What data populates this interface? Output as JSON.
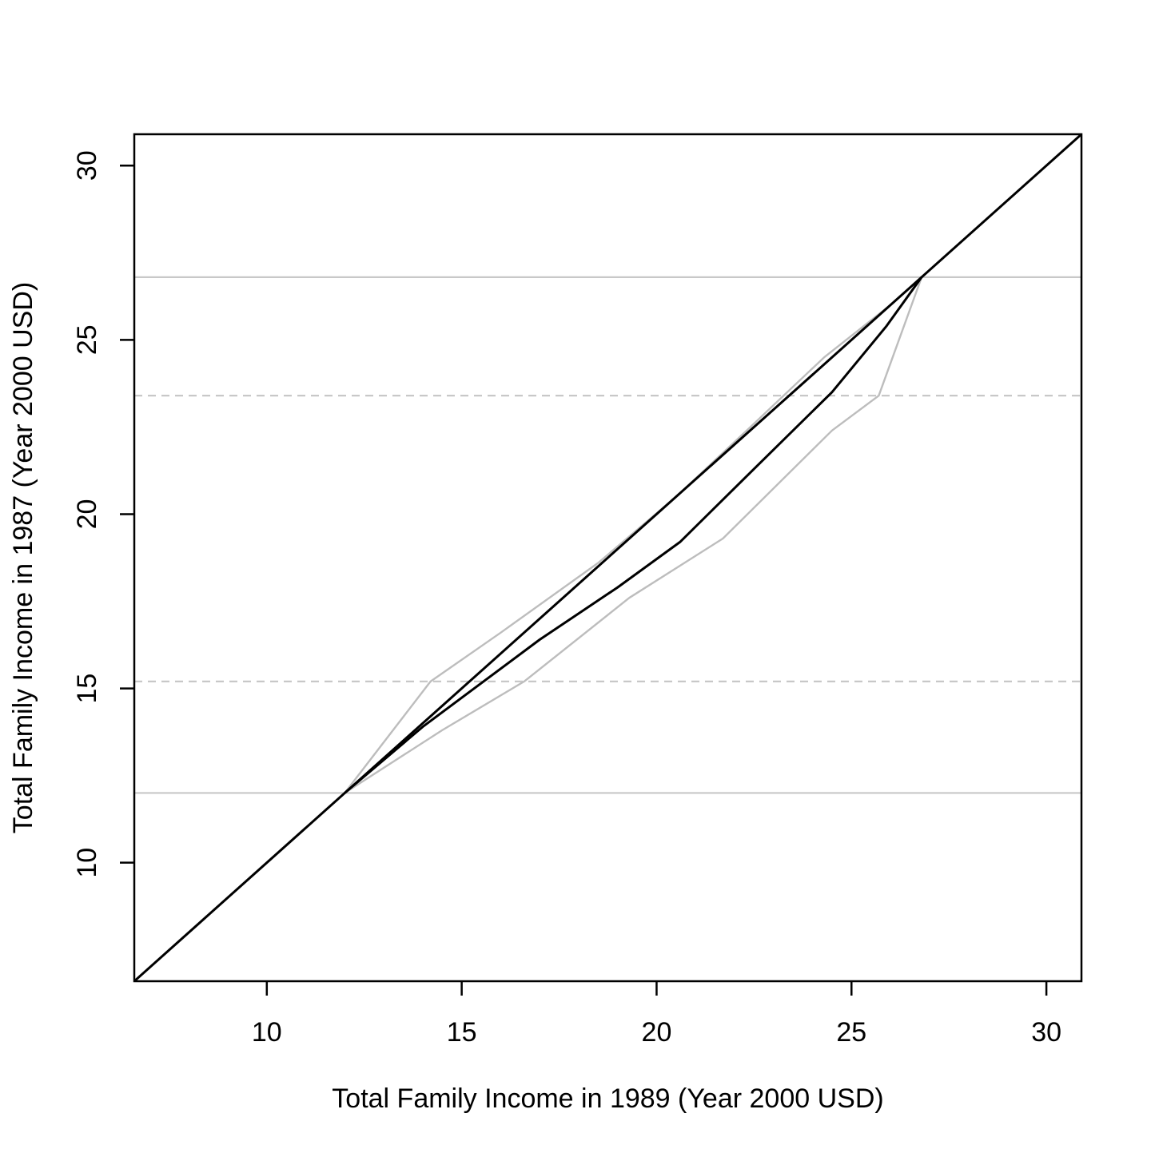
{
  "chart_data": {
    "type": "line",
    "title": "",
    "xlabel": "Total Family Income in 1989 (Year 2000 USD)",
    "ylabel": "Total Family Income in 1987 (Year 2000 USD)",
    "xlim": [
      6.6,
      30.9
    ],
    "ylim": [
      6.6,
      30.9
    ],
    "xticks": [
      "10",
      "15",
      "20",
      "25",
      "30"
    ],
    "yticks": [
      "10",
      "15",
      "20",
      "25",
      "30"
    ],
    "grid": false,
    "colors": {
      "main": "#000000",
      "band": "#bdbdbd",
      "reference": "#c8c8c8",
      "frame": "#000000"
    },
    "reference_lines": [
      {
        "y": 12.0,
        "style": "solid"
      },
      {
        "y": 15.2,
        "style": "dashed"
      },
      {
        "y": 23.4,
        "style": "dashed"
      },
      {
        "y": 26.8,
        "style": "solid"
      }
    ],
    "series": [
      {
        "style": "solid",
        "color": "#000000",
        "x": [
          6.6,
          30.9
        ],
        "y": [
          6.6,
          30.9
        ]
      },
      {
        "style": "solid",
        "color": "#000000",
        "x": [
          12.0,
          14.0,
          15.2,
          17.0,
          19.0,
          20.6,
          22.5,
          24.5,
          25.9,
          26.8
        ],
        "y": [
          12.0,
          13.9,
          14.9,
          16.4,
          17.9,
          19.2,
          21.3,
          23.5,
          25.4,
          26.8
        ]
      },
      {
        "style": "solid",
        "color": "#bdbdbd",
        "x": [
          12.0,
          14.2,
          16.0,
          18.5,
          20.5,
          22.5,
          24.3,
          26.0,
          26.8
        ],
        "y": [
          12.0,
          15.2,
          16.6,
          18.6,
          20.5,
          22.6,
          24.5,
          26.0,
          26.8
        ]
      },
      {
        "style": "solid",
        "color": "#bdbdbd",
        "x": [
          12.0,
          14.5,
          16.6,
          19.3,
          21.7,
          24.5,
          25.7,
          26.8
        ],
        "y": [
          12.0,
          13.8,
          15.2,
          17.6,
          19.3,
          22.4,
          23.4,
          26.8
        ]
      }
    ]
  }
}
